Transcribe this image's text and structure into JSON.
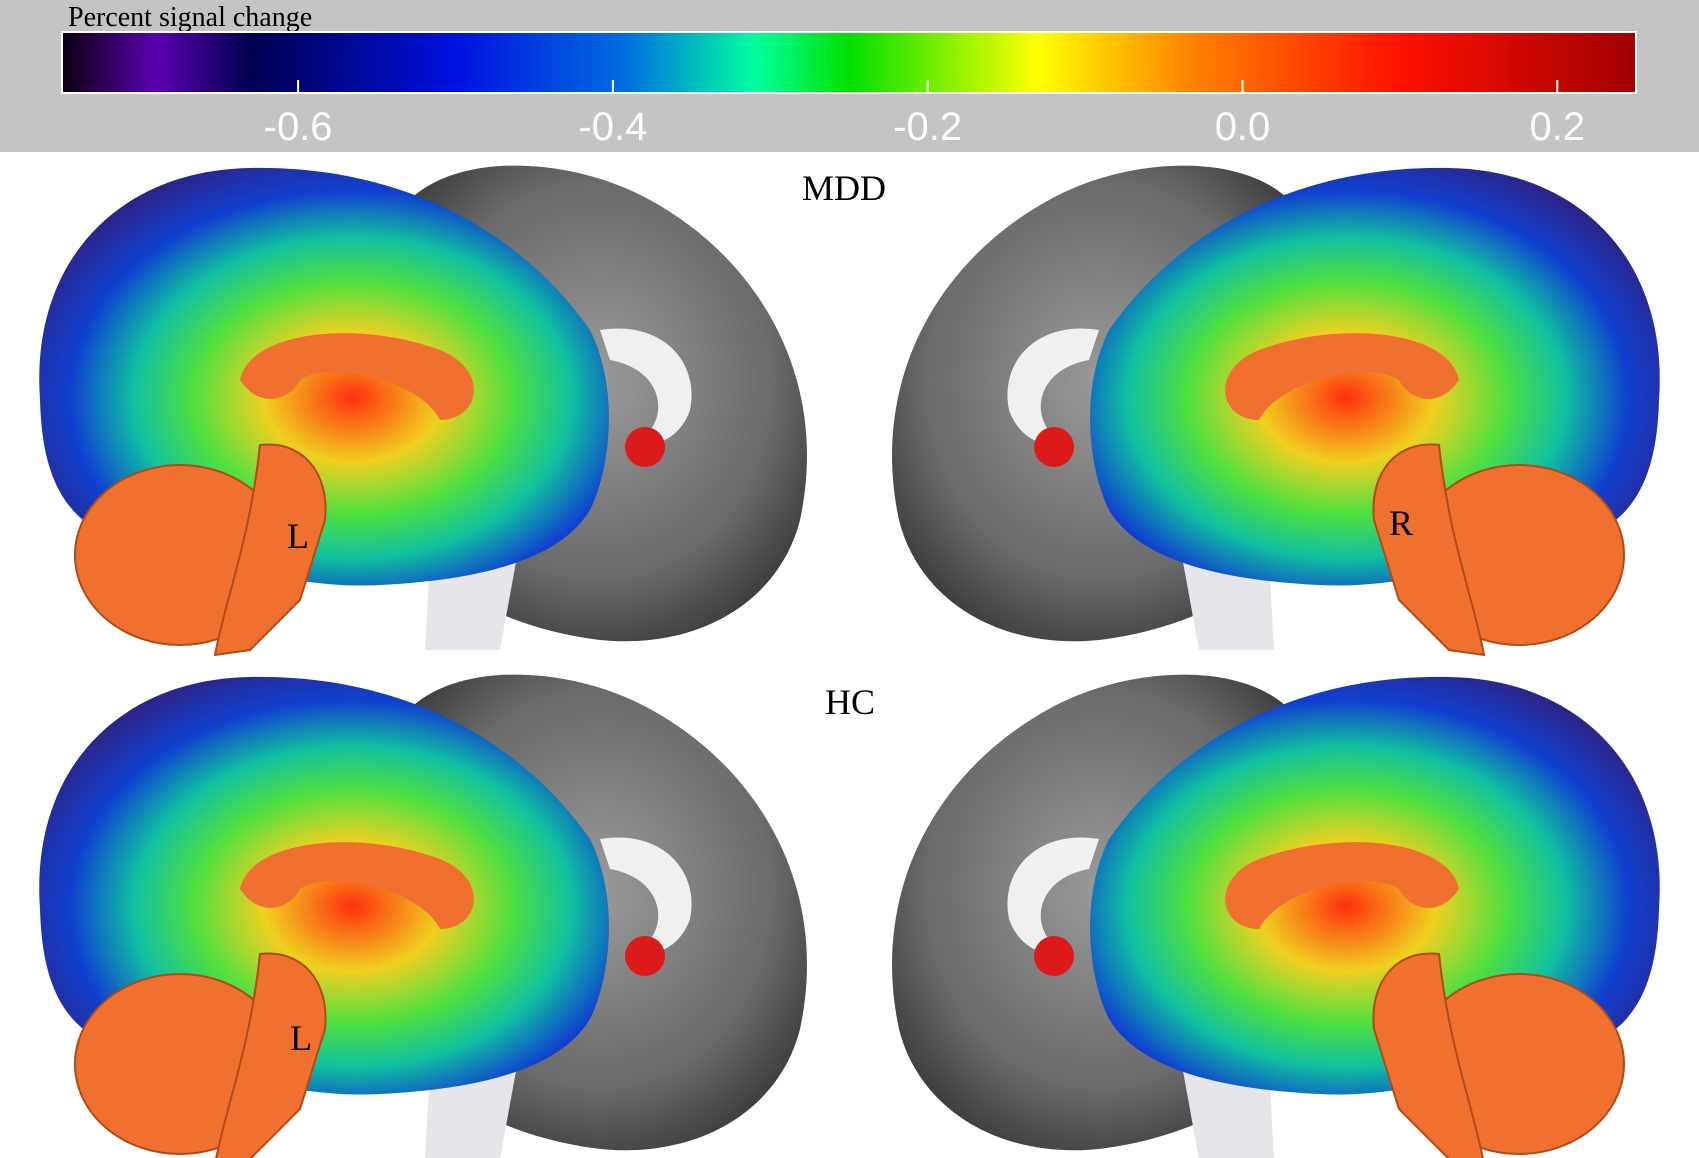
{
  "colorbar": {
    "title": "Percent signal change",
    "range": [
      -0.75,
      0.25
    ],
    "ticks": [
      {
        "value": -0.6,
        "label": "-0.6"
      },
      {
        "value": -0.4,
        "label": "-0.4"
      },
      {
        "value": -0.2,
        "label": "-0.2"
      },
      {
        "value": 0.0,
        "label": "0.0"
      },
      {
        "value": 0.2,
        "label": "0.2"
      }
    ],
    "colormap": [
      "#0a0010",
      "#5a00b0",
      "#000050",
      "#0010e0",
      "#0070e0",
      "#00ffa0",
      "#00e000",
      "#ffff00",
      "#ff8000",
      "#ff1000",
      "#a00000"
    ],
    "background": "#c4c4c4"
  },
  "rows": [
    {
      "group": "MDD",
      "left_label": "L",
      "right_label": "R"
    },
    {
      "group": "HC",
      "left_label": "L",
      "right_label": ""
    }
  ],
  "colors": {
    "seed": "#dd1a1a",
    "cerebellum": "#f07030",
    "cortex_gray": "#6e6e6e"
  }
}
